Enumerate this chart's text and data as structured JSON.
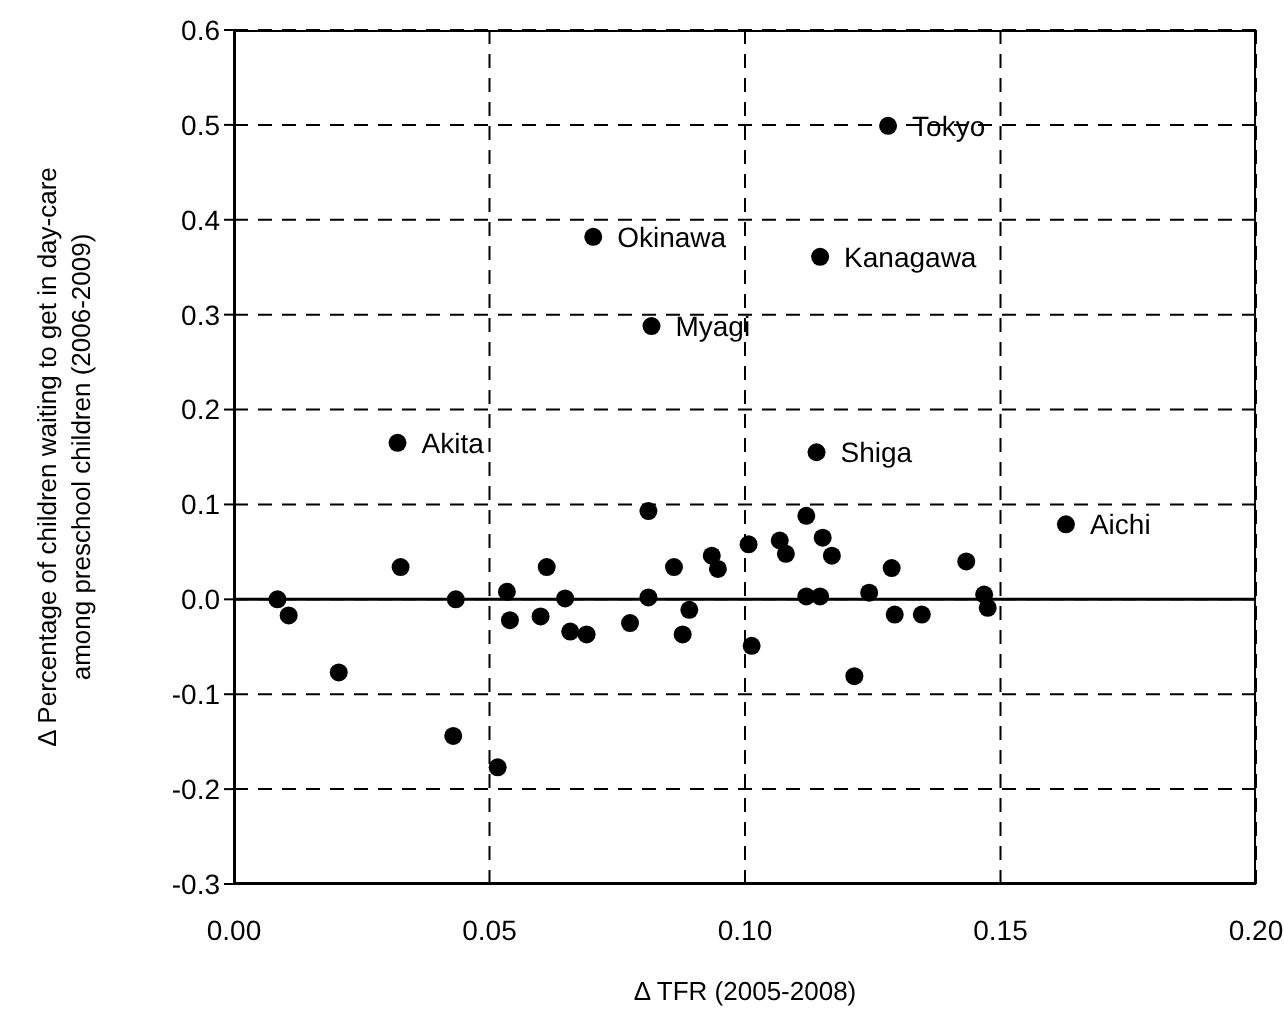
{
  "chart_data": {
    "type": "scatter",
    "xlabel": "Δ TFR (2005-2008)",
    "ylabel": "Δ Percentage of children waiting to get in day-care\namong preschool children (2006-2009)",
    "xlim": [
      0,
      0.2
    ],
    "xticks": [
      {
        "value": 0,
        "label": "0.00"
      },
      {
        "value": 0.05,
        "label": "0.05"
      },
      {
        "value": 0.1,
        "label": "0.10"
      },
      {
        "value": 0.15,
        "label": "0.15"
      },
      {
        "value": 0.2,
        "label": "0.20"
      }
    ],
    "ylim": [
      -0.3,
      0.6
    ],
    "yticks": [
      {
        "value": -0.3,
        "label": "-0.3"
      },
      {
        "value": -0.2,
        "label": "-0.2"
      },
      {
        "value": -0.1,
        "label": "-0.1"
      },
      {
        "value": 0,
        "label": "0.0"
      },
      {
        "value": 0.1,
        "label": "0.1"
      },
      {
        "value": 0.2,
        "label": "0.2"
      },
      {
        "value": 0.3,
        "label": "0.3"
      },
      {
        "value": 0.4,
        "label": "0.4"
      },
      {
        "value": 0.5,
        "label": "0.5"
      },
      {
        "value": 0.6,
        "label": "0.6"
      }
    ],
    "grid": true,
    "marker": "circle",
    "series": [
      {
        "color": "#000000",
        "x": [
          0.0085,
          0.0107,
          0.0205,
          0.032,
          0.0326,
          0.0434,
          0.0429,
          0.0516,
          0.0534,
          0.054,
          0.06,
          0.0612,
          0.0648,
          0.0658,
          0.069,
          0.0775,
          0.0811,
          0.0811,
          0.0817,
          0.0861,
          0.0878,
          0.0891,
          0.0935,
          0.0947,
          0.1007,
          0.1013,
          0.1068,
          0.108,
          0.112,
          0.112,
          0.1147,
          0.1152,
          0.117,
          0.114,
          0.1214,
          0.1243,
          0.1287,
          0.1293,
          0.1346,
          0.1433,
          0.1468,
          0.1475,
          0.1628,
          0.128,
          0.0703,
          0.1147
        ],
        "values": [
          0.0,
          -0.017,
          -0.077,
          0.165,
          0.034,
          0.0,
          -0.144,
          -0.177,
          0.008,
          -0.022,
          -0.018,
          0.034,
          0.001,
          -0.034,
          -0.037,
          -0.025,
          0.093,
          0.002,
          0.288,
          0.034,
          -0.037,
          -0.011,
          0.046,
          0.032,
          0.058,
          -0.049,
          0.062,
          0.048,
          0.088,
          0.003,
          0.003,
          0.065,
          0.046,
          0.155,
          -0.081,
          0.007,
          0.033,
          -0.016,
          -0.016,
          0.04,
          0.005,
          -0.009,
          0.079,
          0.499,
          0.382,
          0.361
        ]
      }
    ],
    "ref_lines": [
      {
        "axis": "y",
        "value": 0,
        "color": "#000000",
        "line_style": "solid"
      }
    ],
    "annotations": [
      {
        "text": "Tokyo",
        "x": 0.128,
        "y": 0.499
      },
      {
        "text": "Okinawa",
        "x": 0.0703,
        "y": 0.382
      },
      {
        "text": "Kanagawa",
        "x": 0.1147,
        "y": 0.361
      },
      {
        "text": "Myagi",
        "x": 0.0817,
        "y": 0.288
      },
      {
        "text": "Akita",
        "x": 0.032,
        "y": 0.165
      },
      {
        "text": "Shiga",
        "x": 0.114,
        "y": 0.155
      },
      {
        "text": "Aichi",
        "x": 0.1628,
        "y": 0.079
      }
    ]
  }
}
